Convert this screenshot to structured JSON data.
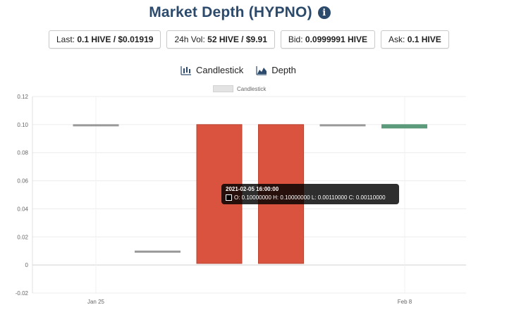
{
  "header": {
    "title": "Market Depth (HYPNO)",
    "info_icon": "info-circle-icon"
  },
  "stats": {
    "last_label": "Last:",
    "last_value": "0.1 HIVE / $0.01919",
    "vol_label": "24h Vol:",
    "vol_value": "52 HIVE / $9.91",
    "bid_label": "Bid:",
    "bid_value": "0.0999991 HIVE",
    "ask_label": "Ask:",
    "ask_value": "0.1 HIVE"
  },
  "tabs": {
    "candlestick_label": "Candlestick",
    "candlestick_icon": "candlestick-chart-icon",
    "depth_label": "Depth",
    "depth_icon": "area-chart-icon"
  },
  "tooltip": {
    "title": "2021-02-05 16:00:00",
    "body": "O: 0.10000000  H: 0.10000000  L: 0.00110000  C: 0.00110000"
  },
  "colors": {
    "up": "#5b9a7a",
    "down": "#d9533f",
    "title": "#2c4a6b",
    "neutral": "#999999"
  },
  "chart_data": {
    "type": "candlestick",
    "legend": [
      "Candlestick"
    ],
    "legend_position": "top-center",
    "ylim": [
      -0.02,
      0.12
    ],
    "yticks": [
      "0.12",
      "0.10",
      "0.08",
      "0.06",
      "0.04",
      "0.02",
      "0",
      "-0.02"
    ],
    "xticks": [
      "Jan 25",
      "Feb 8"
    ],
    "grid": true,
    "candles": [
      {
        "open": 0.1,
        "high": 0.1,
        "low": 0.1,
        "close": 0.1
      },
      {
        "open": 0.01,
        "high": 0.01,
        "low": 0.01,
        "close": 0.01
      },
      {
        "open": 0.1,
        "high": 0.1,
        "low": 0.0011,
        "close": 0.0011
      },
      {
        "open": 0.1,
        "high": 0.1,
        "low": 0.0011,
        "close": 0.0011
      },
      {
        "open": 0.1,
        "high": 0.1,
        "low": 0.1,
        "close": 0.1
      },
      {
        "open": 0.0975,
        "high": 0.1,
        "low": 0.0975,
        "close": 0.1
      }
    ]
  }
}
